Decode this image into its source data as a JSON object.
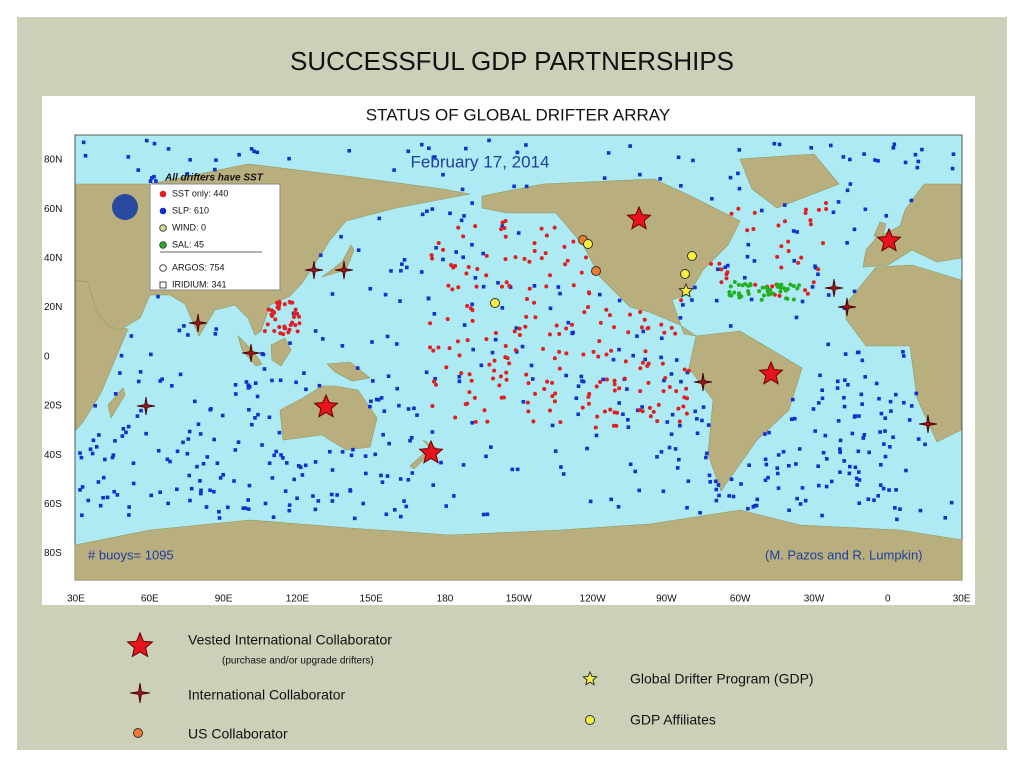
{
  "header": {
    "title": "SUCCESSFUL GDP PARTNERSHIPS"
  },
  "map": {
    "title": "STATUS OF GLOBAL DRIFTER ARRAY",
    "date": "February 17, 2014",
    "note": "All drifters have SST",
    "legend": [
      "SST only: 440",
      "SLP: 610",
      "WIND: 0",
      "SAL: 45",
      "ARGOS: 754",
      "IRIDIUM: 341"
    ],
    "lat_labels": [
      "80N",
      "60N",
      "40N",
      "20N",
      "0",
      "20S",
      "40S",
      "60S",
      "80S"
    ],
    "lon_labels": [
      "30E",
      "60E",
      "90E",
      "120E",
      "150E",
      "180",
      "150W",
      "120W",
      "90W",
      "60W",
      "30W",
      "0",
      "30E"
    ],
    "buoy_count": "# buoys= 1095",
    "credit": "(M. Pazos and R. Lumpkin)"
  },
  "legend": {
    "vested": "Vested International Collaborator",
    "vested_note": "(purchase and/or upgrade drifters)",
    "international": "International Collaborator",
    "us": "US Collaborator",
    "gdp": "Global Drifter Program (GDP)",
    "affiliates": "GDP Affiliates"
  }
}
